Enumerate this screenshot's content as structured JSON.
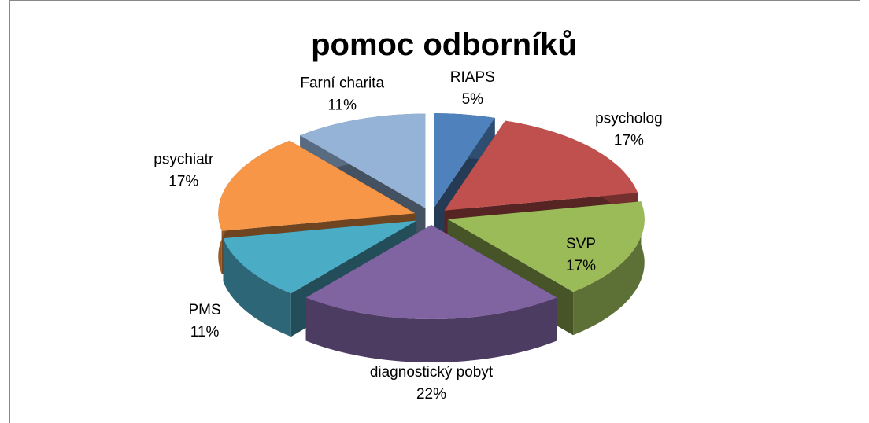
{
  "chart_data": {
    "type": "pie3d",
    "title": "pomoc odborníků",
    "categories": [
      "RIAPS",
      "psycholog",
      "SVP",
      "diagnostický pobyt",
      "PMS",
      "psychiatr",
      "Farní charita"
    ],
    "values": [
      5,
      17,
      17,
      22,
      11,
      17,
      11
    ],
    "value_labels": [
      "5%",
      "17%",
      "17%",
      "22%",
      "11%",
      "17%",
      "11%"
    ],
    "colors": [
      "#4f81bd",
      "#c0504d",
      "#9bbb59",
      "#8064a2",
      "#4bacc6",
      "#f79646",
      "#95b3d7"
    ]
  }
}
